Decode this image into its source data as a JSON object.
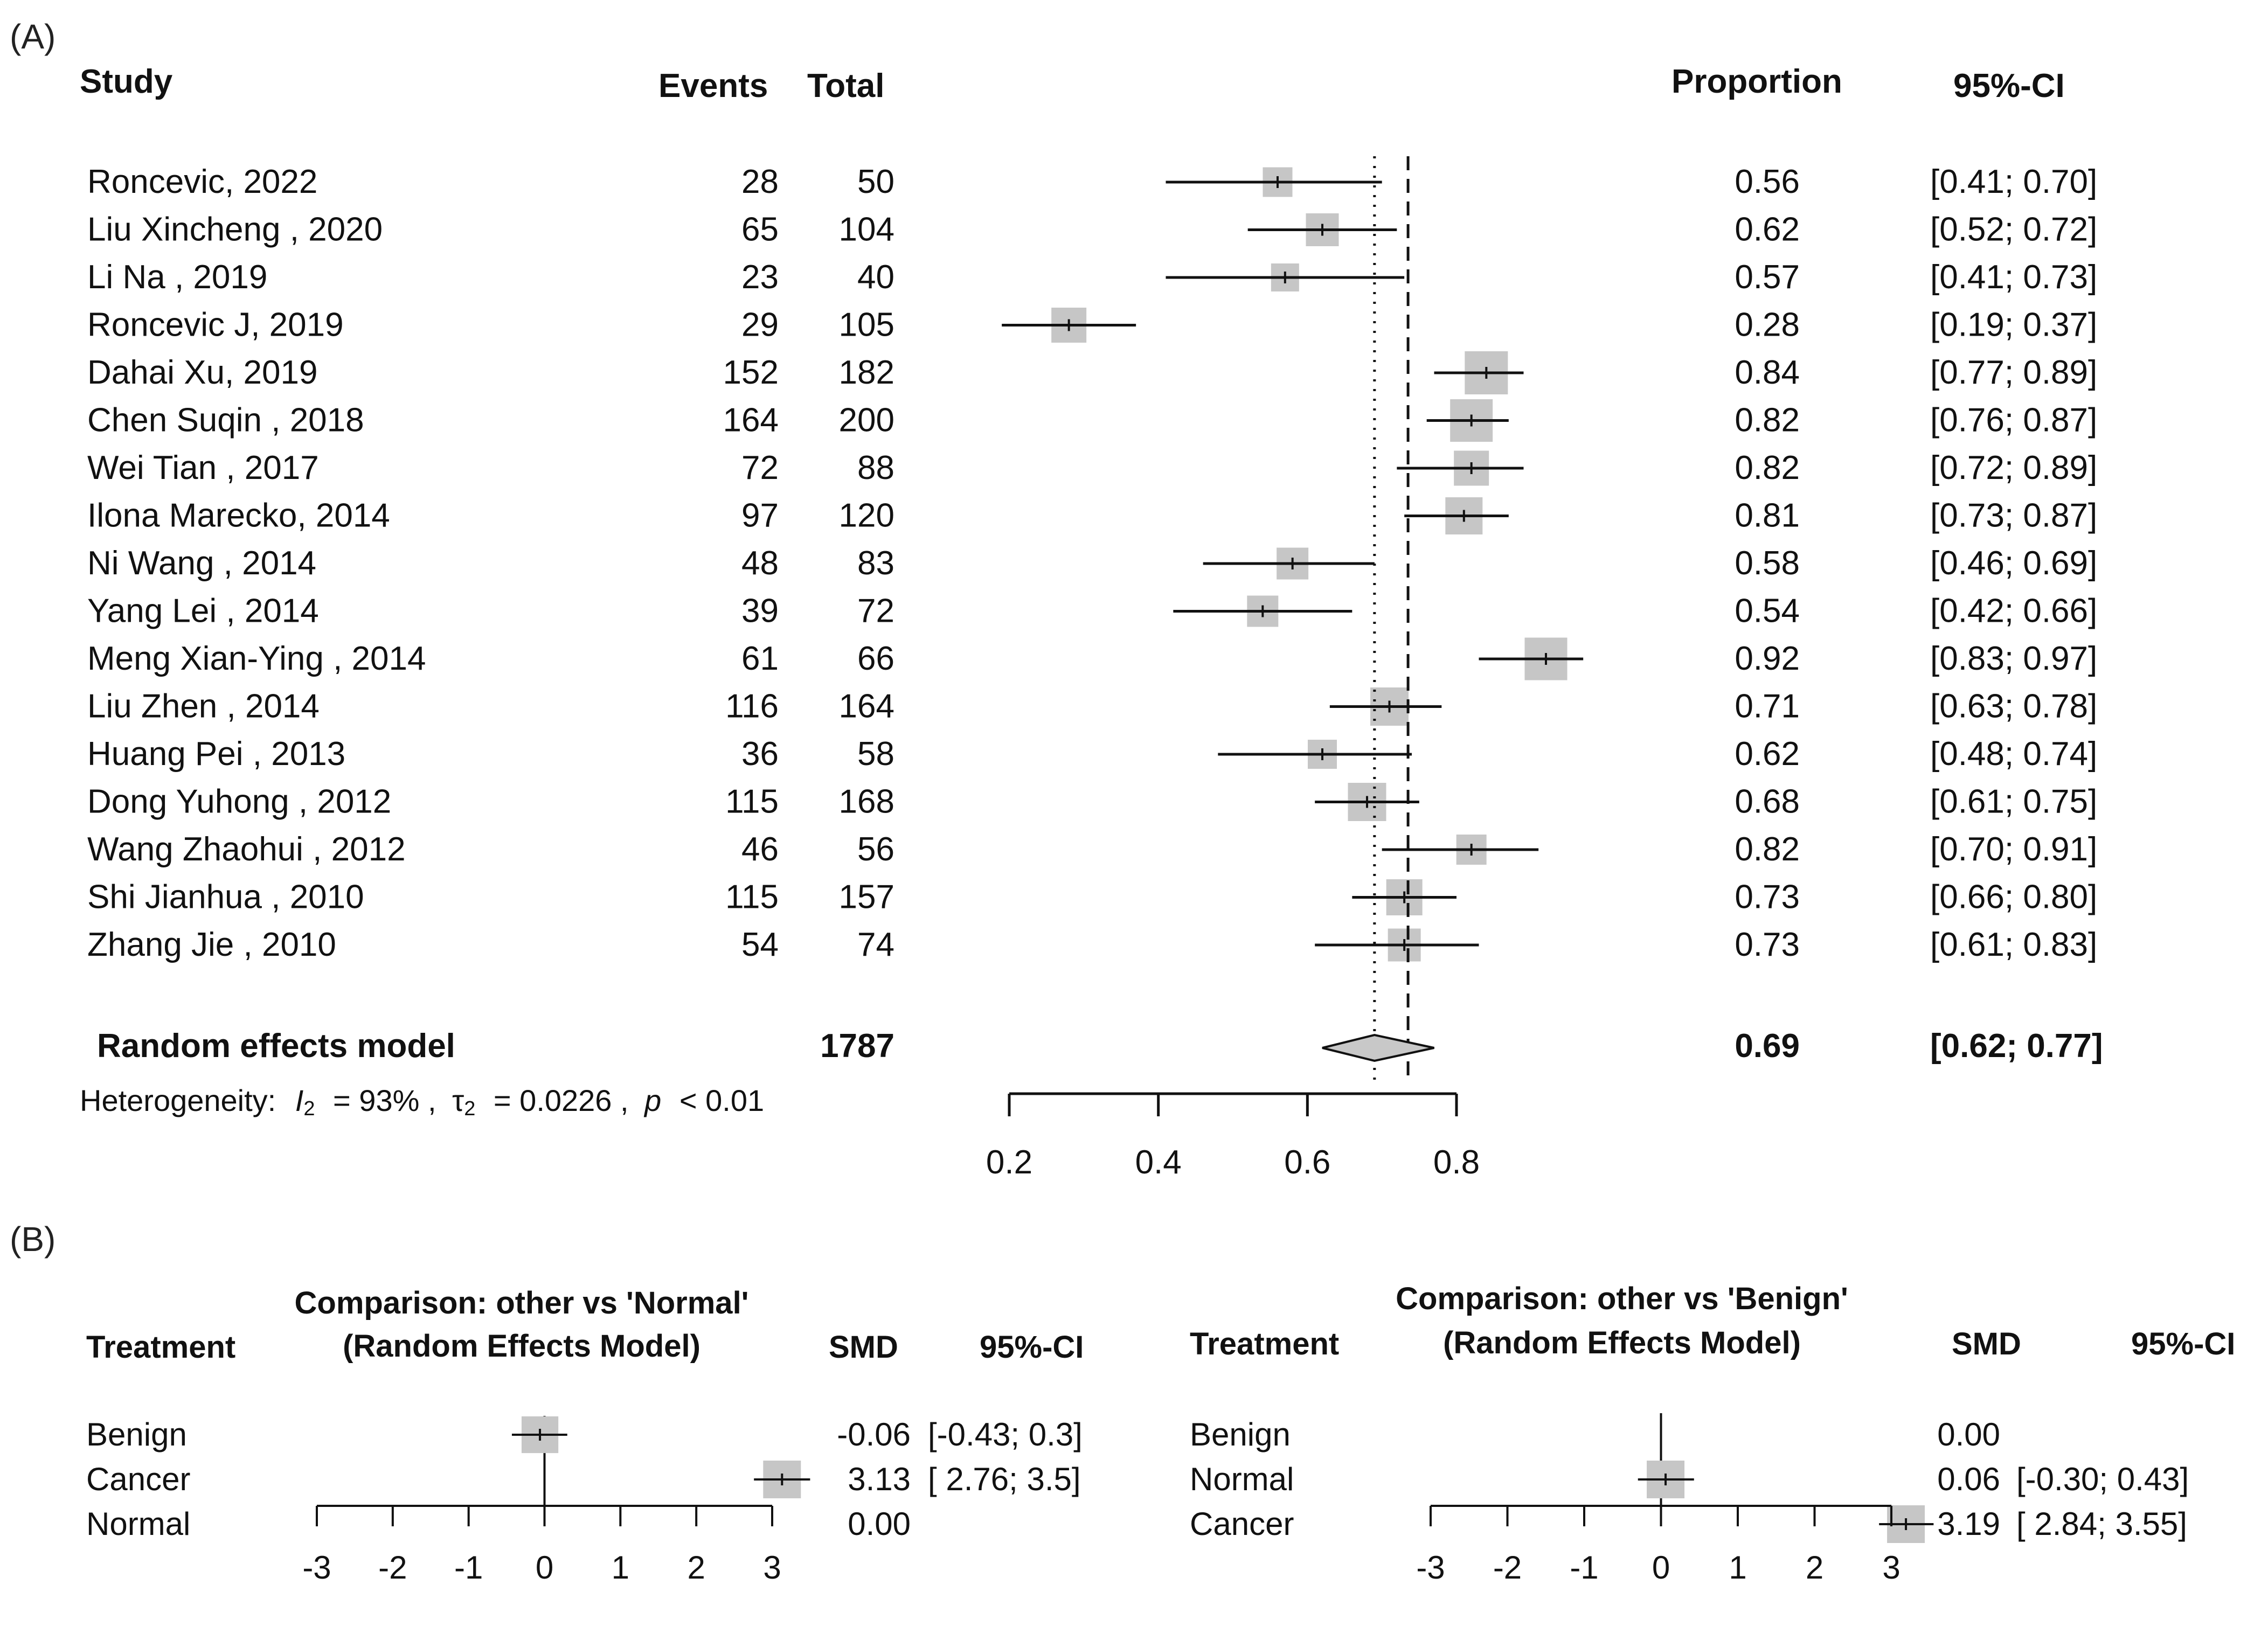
{
  "chart_data": [
    {
      "panel": "(A)",
      "type": "forest",
      "columns": {
        "study": "Study",
        "events": "Events",
        "total": "Total",
        "proportion": "Proportion",
        "ci": "95%-CI"
      },
      "studies": [
        {
          "study": "Roncevic, 2022",
          "events": "28",
          "total": "50",
          "p": 0.56,
          "lo": 0.41,
          "hi": 0.7,
          "w": 0.5,
          "p_label": "0.56",
          "ci_label": "[0.41; 0.70]"
        },
        {
          "study": "Liu Xincheng , 2020",
          "events": "65",
          "total": "104",
          "p": 0.62,
          "lo": 0.52,
          "hi": 0.72,
          "w": 0.62,
          "p_label": "0.62",
          "ci_label": "[0.52; 0.72]"
        },
        {
          "study": "Li Na , 2019",
          "events": "23",
          "total": "40",
          "p": 0.57,
          "lo": 0.41,
          "hi": 0.73,
          "w": 0.44,
          "p_label": "0.57",
          "ci_label": "[0.41; 0.73]"
        },
        {
          "study": "Roncevic J, 2019",
          "events": "29",
          "total": "105",
          "p": 0.28,
          "lo": 0.19,
          "hi": 0.37,
          "w": 0.7,
          "p_label": "0.28",
          "ci_label": "[0.19; 0.37]"
        },
        {
          "study": "Dahai Xu, 2019",
          "events": "152",
          "total": "182",
          "p": 0.84,
          "lo": 0.77,
          "hi": 0.89,
          "w": 1.0,
          "p_label": "0.84",
          "ci_label": "[0.77; 0.89]"
        },
        {
          "study": "Chen Suqin , 2018",
          "events": "164",
          "total": "200",
          "p": 0.82,
          "lo": 0.76,
          "hi": 0.87,
          "w": 0.98,
          "p_label": "0.82",
          "ci_label": "[0.76; 0.87]"
        },
        {
          "study": "Wei Tian , 2017",
          "events": "72",
          "total": "88",
          "p": 0.82,
          "lo": 0.72,
          "hi": 0.89,
          "w": 0.7,
          "p_label": "0.82",
          "ci_label": "[0.72; 0.89]"
        },
        {
          "study": "Ilona Marecko, 2014",
          "events": "97",
          "total": "120",
          "p": 0.81,
          "lo": 0.73,
          "hi": 0.87,
          "w": 0.78,
          "p_label": "0.81",
          "ci_label": "[0.73; 0.87]"
        },
        {
          "study": "Ni Wang , 2014",
          "events": "48",
          "total": "83",
          "p": 0.58,
          "lo": 0.46,
          "hi": 0.69,
          "w": 0.58,
          "p_label": "0.58",
          "ci_label": "[0.46; 0.69]"
        },
        {
          "study": "Yang Lei , 2014",
          "events": "39",
          "total": "72",
          "p": 0.54,
          "lo": 0.42,
          "hi": 0.66,
          "w": 0.56,
          "p_label": "0.54",
          "ci_label": "[0.42; 0.66]"
        },
        {
          "study": "Meng Xian-Ying , 2014",
          "events": "61",
          "total": "66",
          "p": 0.92,
          "lo": 0.83,
          "hi": 0.97,
          "w": 0.98,
          "p_label": "0.92",
          "ci_label": "[0.83; 0.97]"
        },
        {
          "study": "Liu Zhen , 2014",
          "events": "116",
          "total": "164",
          "p": 0.71,
          "lo": 0.63,
          "hi": 0.78,
          "w": 0.82,
          "p_label": "0.71",
          "ci_label": "[0.63; 0.78]"
        },
        {
          "study": "Huang Pei , 2013",
          "events": "36",
          "total": "58",
          "p": 0.62,
          "lo": 0.48,
          "hi": 0.74,
          "w": 0.48,
          "p_label": "0.62",
          "ci_label": "[0.48; 0.74]"
        },
        {
          "study": "Dong Yuhong , 2012",
          "events": "115",
          "total": "168",
          "p": 0.68,
          "lo": 0.61,
          "hi": 0.75,
          "w": 0.82,
          "p_label": "0.68",
          "ci_label": "[0.61; 0.75]"
        },
        {
          "study": "Wang Zhaohui , 2012",
          "events": "46",
          "total": "56",
          "p": 0.82,
          "lo": 0.7,
          "hi": 0.91,
          "w": 0.52,
          "p_label": "0.82",
          "ci_label": "[0.70; 0.91]"
        },
        {
          "study": "Shi Jianhua , 2010",
          "events": "115",
          "total": "157",
          "p": 0.73,
          "lo": 0.66,
          "hi": 0.8,
          "w": 0.74,
          "p_label": "0.73",
          "ci_label": "[0.66; 0.80]"
        },
        {
          "study": "Zhang Jie , 2010",
          "events": "54",
          "total": "74",
          "p": 0.73,
          "lo": 0.61,
          "hi": 0.83,
          "w": 0.62,
          "p_label": "0.73",
          "ci_label": "[0.61; 0.83]"
        }
      ],
      "pooled": {
        "label": "Random effects model",
        "total": "1787",
        "p": 0.69,
        "lo": 0.62,
        "hi": 0.77,
        "p_label": "0.69",
        "ci_label": "[0.62; 0.77]"
      },
      "heterogeneity": {
        "prefix": "Heterogeneity:",
        "i2_symbol": "I",
        "i2_sub": "2",
        "i2_value": "= 93% ,",
        "tau_symbol": "τ",
        "tau_sub": "2",
        "tau_value": "= 0.0226 ,",
        "p_symbol": "p",
        "p_value": "< 0.01"
      },
      "reference_line": 0.735,
      "xlim": [
        0.2,
        0.8
      ],
      "ticks": [
        0.2,
        0.4,
        0.6,
        0.8
      ],
      "tick_labels": [
        "0.2",
        "0.4",
        "0.6",
        "0.8"
      ]
    },
    {
      "panel": "(B)",
      "type": "forest",
      "title_line1": "Comparison: other vs 'Normal'",
      "title_line2": "(Random Effects Model)",
      "columns": {
        "treatment": "Treatment",
        "estimate": "SMD",
        "ci": "95%-CI"
      },
      "rows": [
        {
          "treatment": "Benign",
          "smd": -0.06,
          "lo": -0.43,
          "hi": 0.3,
          "w": 0.9,
          "smd_label": "-0.06",
          "ci_label": "[-0.43; 0.3]"
        },
        {
          "treatment": "Cancer",
          "smd": 3.13,
          "lo": 2.76,
          "hi": 3.5,
          "w": 1.0,
          "smd_label": "3.13",
          "ci_label": "[ 2.76; 3.5]"
        },
        {
          "treatment": "Normal",
          "smd": 0.0,
          "lo": null,
          "hi": null,
          "w": 0,
          "smd_label": "0.00",
          "ci_label": ""
        }
      ],
      "xlim": [
        -3,
        3
      ],
      "ticks": [
        -3,
        -2,
        -1,
        0,
        1,
        2,
        3
      ],
      "tick_labels": [
        "-3",
        "-2",
        "-1",
        "0",
        "1",
        "2",
        "3"
      ]
    },
    {
      "panel": "(B)",
      "type": "forest",
      "title_line1": "Comparison: other vs 'Benign'",
      "title_line2": "(Random Effects Model)",
      "columns": {
        "treatment": "Treatment",
        "estimate": "SMD",
        "ci": "95%-CI"
      },
      "rows": [
        {
          "treatment": "Benign",
          "smd": 0.0,
          "lo": null,
          "hi": null,
          "w": 0,
          "smd_label": "0.00",
          "ci_label": ""
        },
        {
          "treatment": "Normal",
          "smd": 0.06,
          "lo": -0.3,
          "hi": 0.43,
          "w": 1.0,
          "smd_label": "0.06",
          "ci_label": "[-0.30; 0.43]"
        },
        {
          "treatment": "Cancer",
          "smd": 3.19,
          "lo": 2.84,
          "hi": 3.55,
          "w": 1.0,
          "smd_label": "3.19",
          "ci_label": "[ 2.84; 3.55]"
        }
      ],
      "xlim": [
        -3,
        3
      ],
      "ticks": [
        -3,
        -2,
        -1,
        0,
        1,
        2,
        3
      ],
      "tick_labels": [
        "-3",
        "-2",
        "-1",
        "0",
        "1",
        "2",
        "3"
      ]
    }
  ]
}
